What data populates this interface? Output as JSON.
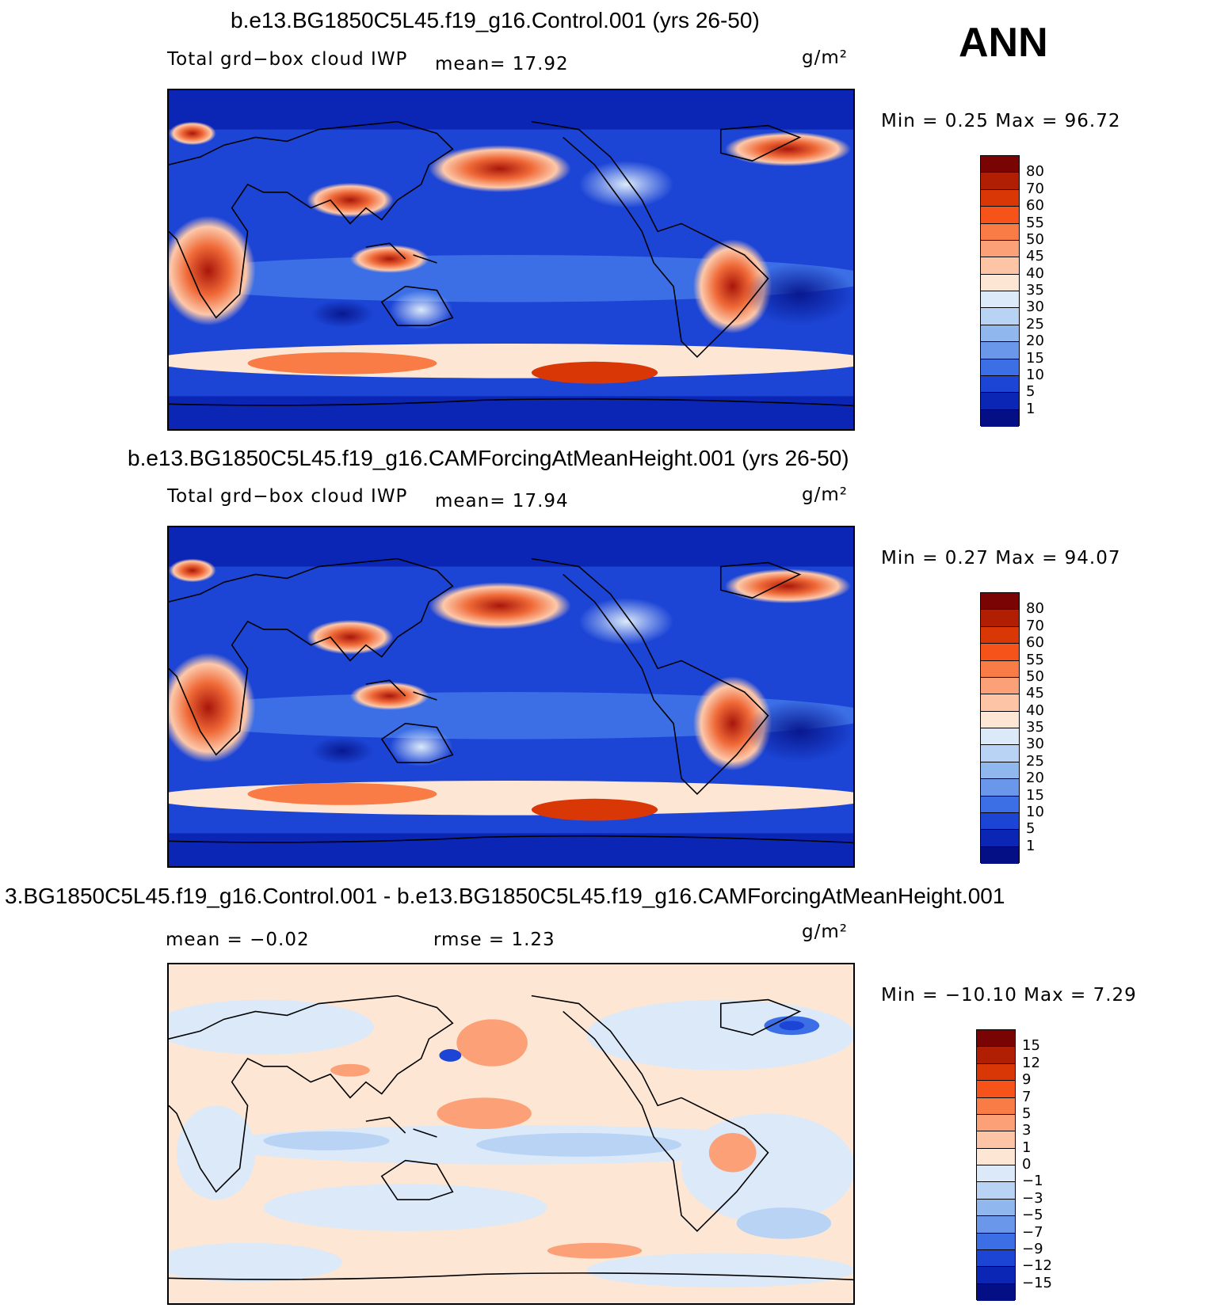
{
  "season": "ANN",
  "panels": [
    {
      "title": "b.e13.BG1850C5L45.f19_g16.Control.001 (yrs 26-50)",
      "field_label": "Total grd−box cloud IWP",
      "stat1": "mean=   17.92",
      "units": "g/m²",
      "minmax": "Min =    0.25  Max =   96.72"
    },
    {
      "title": "b.e13.BG1850C5L45.f19_g16.CAMForcingAtMeanHeight.001 (yrs 26-50)",
      "field_label": "Total grd−box cloud IWP",
      "stat1": "mean=   17.94",
      "units": "g/m²",
      "minmax": "Min =    0.27  Max =   94.07"
    },
    {
      "title": "3.BG1850C5L45.f19_g16.Control.001 - b.e13.BG1850C5L45.f19_g16.CAMForcingAtMeanHeight.001",
      "field_label": "",
      "stat1": "mean =   −0.02",
      "stat2": "rmse =    1.23",
      "units": "g/m²",
      "minmax": "Min = −10.10  Max =    7.29"
    }
  ],
  "colorbar_abs": {
    "labels": [
      "80",
      "70",
      "60",
      "55",
      "50",
      "45",
      "40",
      "35",
      "30",
      "25",
      "20",
      "15",
      "10",
      "5",
      "1"
    ],
    "colors": [
      "#7a0403",
      "#b01e04",
      "#d93806",
      "#f5531a",
      "#f97b45",
      "#fca078",
      "#fdc4a5",
      "#fde7d4",
      "#dbe9f9",
      "#b9d3f5",
      "#91b7ef",
      "#6a97ea",
      "#3c6fe6",
      "#1c45d6",
      "#0b25b5",
      "#050f85"
    ]
  },
  "colorbar_diff": {
    "labels": [
      "15",
      "12",
      "9",
      "7",
      "5",
      "3",
      "1",
      "0",
      "−1",
      "−3",
      "−5",
      "−7",
      "−9",
      "−12",
      "−15"
    ],
    "colors": [
      "#7a0403",
      "#b01e04",
      "#d93806",
      "#f5531a",
      "#f97b45",
      "#fca078",
      "#fdc4a5",
      "#fde7d4",
      "#dbe9f9",
      "#b9d3f5",
      "#91b7ef",
      "#6a97ea",
      "#3c6fe6",
      "#1c45d6",
      "#0b25b5",
      "#050f85"
    ]
  }
}
